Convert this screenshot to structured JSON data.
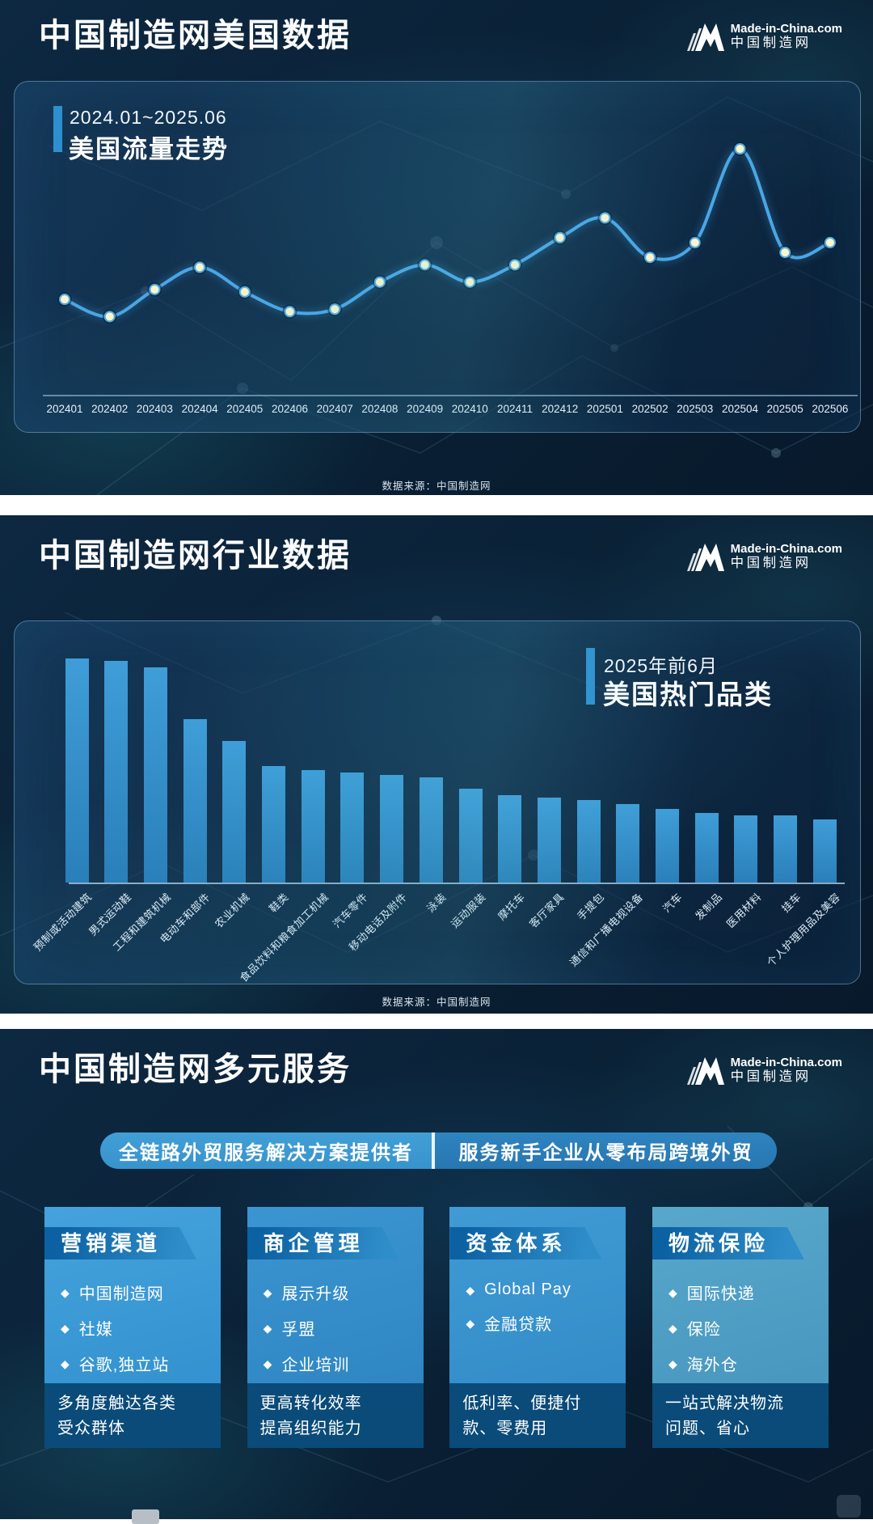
{
  "brand": {
    "site": "Made-in-China.com",
    "name": "中国制造网"
  },
  "sections": {
    "us_data": {
      "title": "中国制造网美国数据"
    },
    "industry_data": {
      "title": "中国制造网行业数据"
    },
    "services": {
      "title": "中国制造网多元服务"
    }
  },
  "chart_data": [
    {
      "type": "line",
      "title": "美国流量走势",
      "subtitle": "2024.01~2025.06",
      "categories": [
        "202401",
        "202402",
        "202403",
        "202404",
        "202405",
        "202406",
        "202407",
        "202408",
        "202409",
        "202410",
        "202411",
        "202412",
        "202501",
        "202502",
        "202503",
        "202504",
        "202505",
        "202506"
      ],
      "values": [
        39,
        32,
        43,
        52,
        42,
        34,
        35,
        46,
        53,
        46,
        53,
        64,
        72,
        56,
        62,
        100,
        58,
        62
      ],
      "ylim": [
        0,
        110
      ],
      "grid": false,
      "source": "数据来源：中国制造网"
    },
    {
      "type": "bar",
      "title": "美国热门品类",
      "subtitle": "2025年前6月",
      "categories": [
        "预制或活动建筑",
        "男式运动鞋",
        "工程和建筑机械",
        "电动车和部件",
        "农业机械",
        "鞋类",
        "食品饮料和粮食加工机械",
        "汽车零件",
        "移动电话及附件",
        "泳装",
        "运动服装",
        "摩托车",
        "客厅家具",
        "手提包",
        "通信和广播电视设备",
        "汽车",
        "发制品",
        "医用材料",
        "挂车",
        "个人护理用品及美容"
      ],
      "values": [
        100,
        99,
        96,
        73,
        63,
        52,
        50,
        49,
        48,
        47,
        42,
        39,
        38,
        37,
        35,
        33,
        31,
        30,
        30,
        28
      ],
      "ylim": [
        0,
        110
      ],
      "grid": false,
      "source": "数据来源：中国制造网"
    }
  ],
  "services": {
    "banner_left": "全链路外贸服务解决方案提供者",
    "banner_right": "服务新手企业从零布局跨境外贸",
    "bullet_icon": "◆",
    "cards": [
      {
        "title": "营销渠道",
        "items": [
          "中国制造网",
          "社媒",
          "谷歌,独立站"
        ],
        "footer": "多角度触达各类\n受众群体"
      },
      {
        "title": "商企管理",
        "items": [
          "展示升级",
          "孚盟",
          "企业培训"
        ],
        "footer": "更高转化效率\n提高组织能力"
      },
      {
        "title": "资金体系",
        "items": [
          "Global Pay",
          "金融贷款"
        ],
        "footer": "低利率、便捷付\n款、零费用"
      },
      {
        "title": "物流保险",
        "items": [
          "国际快递",
          "保险",
          "海外仓"
        ],
        "footer": "一站式解决物流\n问题、省心"
      }
    ]
  },
  "colors": {
    "accent": "#2e8fd0",
    "line": "#4aa6e6",
    "point_fill": "#fdf5cc",
    "point_ring": "#58ace4",
    "bar_top": "#3f9dd8",
    "bar_bottom": "#2a7fb9",
    "axis": "#a5cdeb"
  }
}
